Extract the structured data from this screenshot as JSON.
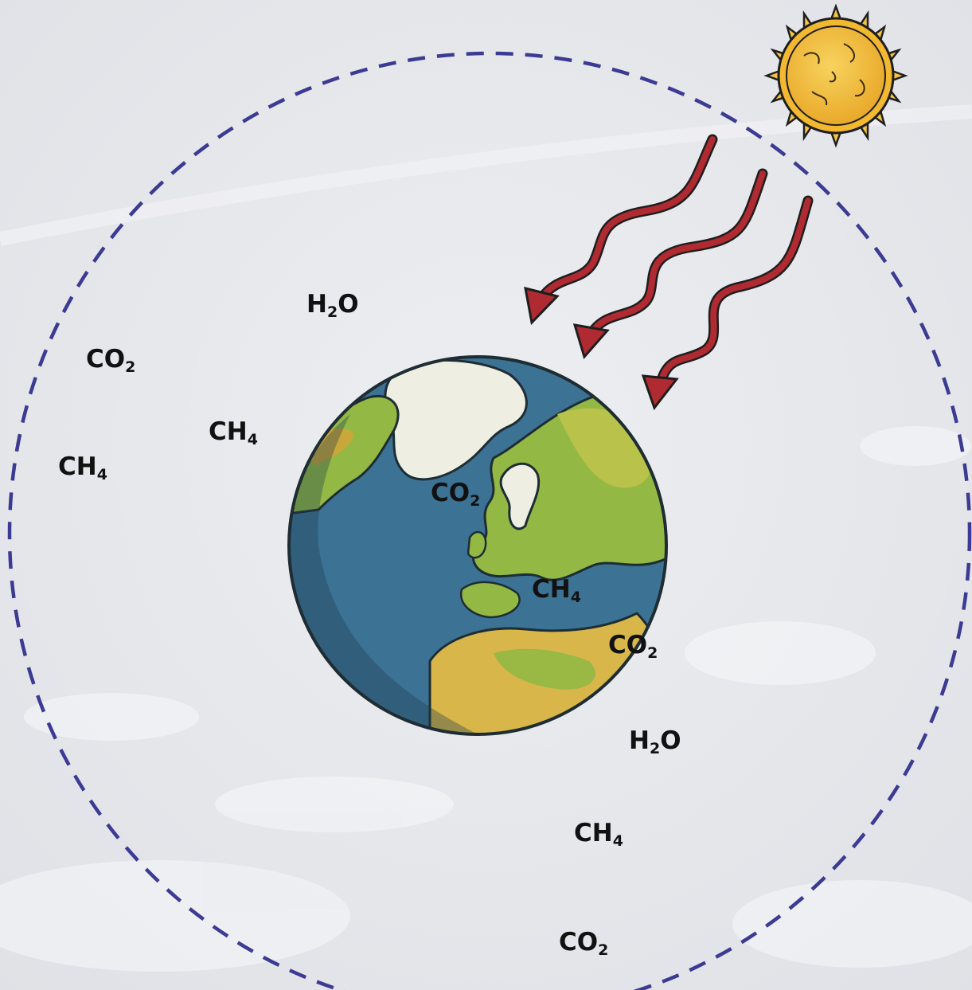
{
  "diagram": {
    "background_color": "#e7e8ec",
    "atmosphere_color": "#3c3a93",
    "sun": {
      "icon": "sun-icon",
      "fill": "#f2b830",
      "ray_color": "#f5c542"
    },
    "earth": {
      "icon": "earth-globe-icon",
      "ocean": "#3c7294",
      "land": "#93b844",
      "ice": "#efeee2"
    },
    "radiation_arrows": {
      "count": 3,
      "color": "#b02a31",
      "icon": "wavy-arrow-icon"
    },
    "molecules": [
      {
        "base": "H",
        "sub": "2",
        "rest": "O"
      },
      {
        "base": "CO",
        "sub": "2",
        "rest": ""
      },
      {
        "base": "CH",
        "sub": "4",
        "rest": ""
      },
      {
        "base": "CH",
        "sub": "4",
        "rest": ""
      },
      {
        "base": "CO",
        "sub": "2",
        "rest": ""
      },
      {
        "base": "CH",
        "sub": "4",
        "rest": ""
      },
      {
        "base": "CO",
        "sub": "2",
        "rest": ""
      },
      {
        "base": "H",
        "sub": "2",
        "rest": "O"
      },
      {
        "base": "CH",
        "sub": "4",
        "rest": ""
      },
      {
        "base": "CO",
        "sub": "2",
        "rest": ""
      }
    ]
  }
}
